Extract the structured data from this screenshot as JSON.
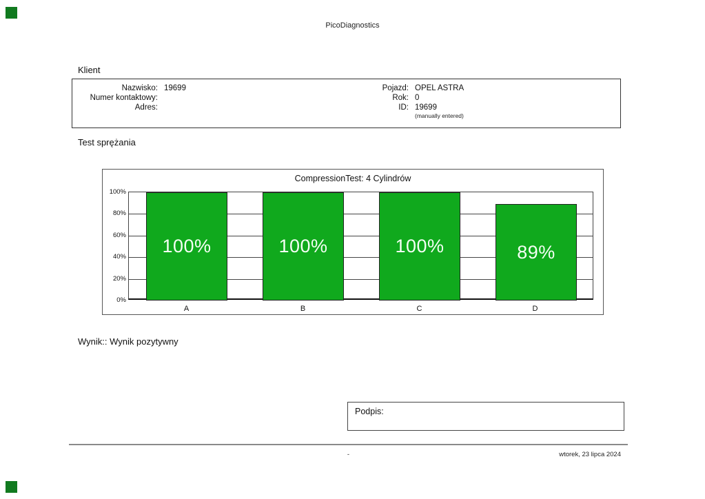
{
  "page": {
    "app_title": "PicoDiagnostics"
  },
  "colors": {
    "bar_green": "#10a91d",
    "corner_green": "#117a1f"
  },
  "client": {
    "heading": "Klient",
    "left_fields": [
      {
        "label": "Nazwisko:",
        "value": "19699"
      },
      {
        "label": "Numer kontaktowy:",
        "value": ""
      },
      {
        "label": "Adres:",
        "value": ""
      }
    ],
    "right_fields": [
      {
        "label": "Pojazd:",
        "value": "OPEL ASTRA"
      },
      {
        "label": "Rok:",
        "value": "0"
      },
      {
        "label": "ID:",
        "value": "19699"
      }
    ],
    "right_note": "(manually entered)"
  },
  "test_section": {
    "heading": "Test sprężania"
  },
  "chart_data": {
    "type": "bar",
    "title": "CompressionTest: 4 Cylindrów",
    "categories": [
      "A",
      "B",
      "C",
      "D"
    ],
    "values": [
      100,
      100,
      100,
      89
    ],
    "bar_labels": [
      "100%",
      "100%",
      "100%",
      "89%"
    ],
    "ytick_labels": [
      "100%",
      "80%",
      "60%",
      "40%",
      "20%",
      "0%"
    ],
    "ylim": [
      0,
      100
    ],
    "grid": true,
    "legend": false,
    "bar_color": "#10a91d",
    "xlabel": "",
    "ylabel": ""
  },
  "result": {
    "text": "Wynik:: Wynik pozytywny"
  },
  "signature": {
    "label": "Podpis:"
  },
  "footer": {
    "center": "-",
    "date": "wtorek, 23 lipca 2024"
  }
}
